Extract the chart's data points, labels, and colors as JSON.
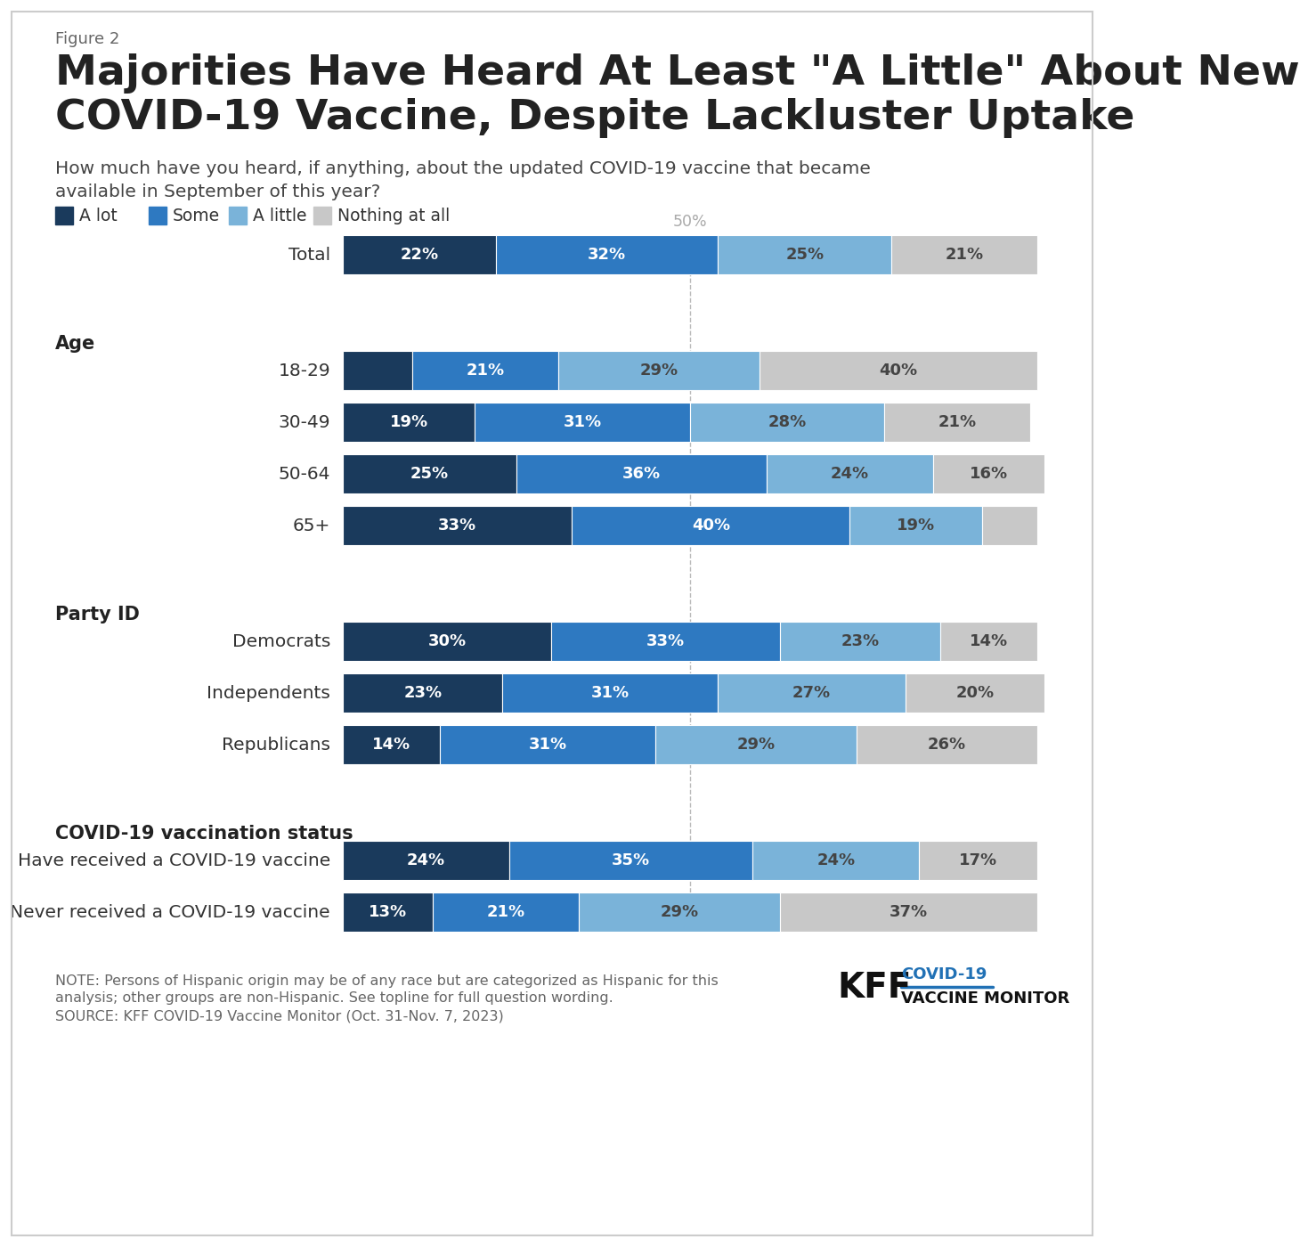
{
  "figure_label": "Figure 2",
  "title": "Majorities Have Heard At Least \"A Little\" About New\nCOVID-19 Vaccine, Despite Lackluster Uptake",
  "subtitle": "How much have you heard, if anything, about the updated COVID-19 vaccine that became\navailable in September of this year?",
  "legend_labels": [
    "A lot",
    "Some",
    "A little",
    "Nothing at all"
  ],
  "colors": [
    "#1a3a5c",
    "#2e79c1",
    "#7ab3d9",
    "#c8c8c8"
  ],
  "data": {
    "Total": [
      22,
      32,
      25,
      21
    ],
    "18-29": [
      10,
      21,
      29,
      40
    ],
    "30-49": [
      19,
      31,
      28,
      21
    ],
    "50-64": [
      25,
      36,
      24,
      16
    ],
    "65+": [
      33,
      40,
      19,
      8
    ],
    "Democrats": [
      30,
      33,
      23,
      14
    ],
    "Independents": [
      23,
      31,
      27,
      20
    ],
    "Republicans": [
      14,
      31,
      29,
      26
    ],
    "Have received a COVID-19 vaccine": [
      24,
      35,
      24,
      17
    ],
    "Never received a COVID-19 vaccine": [
      13,
      21,
      29,
      37
    ]
  },
  "header_labels": {
    "Age_header": "Age",
    "PartyID_header": "Party ID",
    "VaxStatus_header": "COVID-19 vaccination status"
  },
  "note_line1": "NOTE: Persons of Hispanic origin may be of any race but are categorized as Hispanic for this",
  "note_line2": "analysis; other groups are non-Hispanic. See topline for full question wording.",
  "source_line": "SOURCE: KFF COVID-19 Vaccine Monitor (Oct. 31-Nov. 7, 2023)",
  "fifty_pct_label": "50%",
  "background_color": "#ffffff",
  "bar_label_min_show": 12,
  "show_labels_override": {
    "18-29_0": false,
    "65+_3": false
  }
}
